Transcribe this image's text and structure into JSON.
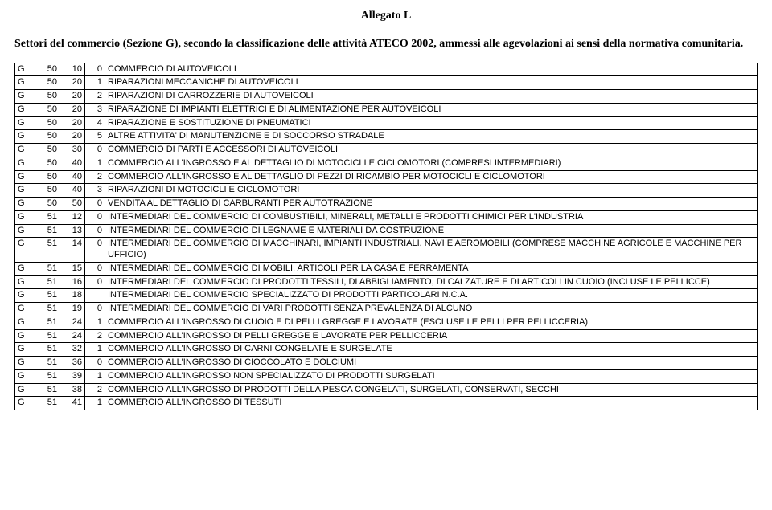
{
  "header": "Allegato L",
  "intro": "Settori del commercio (Sezione G), secondo la classificazione delle attività ATECO 2002, ammessi alle agevolazioni ai sensi della normativa comunitaria.",
  "rows": [
    {
      "c0": "G",
      "c1": "50",
      "c2": "10",
      "c3": "0",
      "c4": "COMMERCIO DI AUTOVEICOLI"
    },
    {
      "c0": "G",
      "c1": "50",
      "c2": "20",
      "c3": "1",
      "c4": "RIPARAZIONI MECCANICHE DI AUTOVEICOLI"
    },
    {
      "c0": "G",
      "c1": "50",
      "c2": "20",
      "c3": "2",
      "c4": "RIPARAZIONI DI CARROZZERIE DI AUTOVEICOLI"
    },
    {
      "c0": "G",
      "c1": "50",
      "c2": "20",
      "c3": "3",
      "c4": "RIPARAZIONE DI IMPIANTI ELETTRICI E DI ALIMENTAZIONE PER AUTOVEICOLI"
    },
    {
      "c0": "G",
      "c1": "50",
      "c2": "20",
      "c3": "4",
      "c4": "RIPARAZIONE E SOSTITUZIONE DI PNEUMATICI"
    },
    {
      "c0": "G",
      "c1": "50",
      "c2": "20",
      "c3": "5",
      "c4": "ALTRE ATTIVITA' DI MANUTENZIONE E DI SOCCORSO STRADALE"
    },
    {
      "c0": "G",
      "c1": "50",
      "c2": "30",
      "c3": "0",
      "c4": "COMMERCIO DI PARTI E ACCESSORI DI AUTOVEICOLI"
    },
    {
      "c0": "G",
      "c1": "50",
      "c2": "40",
      "c3": "1",
      "c4": "COMMERCIO ALL'INGROSSO E AL DETTAGLIO DI MOTOCICLI E CICLOMOTORI (COMPRESI INTERMEDIARI)"
    },
    {
      "c0": "G",
      "c1": "50",
      "c2": "40",
      "c3": "2",
      "c4": "COMMERCIO ALL'INGROSSO E AL DETTAGLIO DI PEZZI DI RICAMBIO PER MOTOCICLI E CICLOMOTORI"
    },
    {
      "c0": "G",
      "c1": "50",
      "c2": "40",
      "c3": "3",
      "c4": "RIPARAZIONI DI MOTOCICLI E CICLOMOTORI"
    },
    {
      "c0": "G",
      "c1": "50",
      "c2": "50",
      "c3": "0",
      "c4": "VENDITA AL DETTAGLIO DI CARBURANTI PER AUTOTRAZIONE"
    },
    {
      "c0": "G",
      "c1": "51",
      "c2": "12",
      "c3": "0",
      "c4": "INTERMEDIARI DEL COMMERCIO DI COMBUSTIBILI, MINERALI, METALLI E PRODOTTI CHIMICI PER L'INDUSTRIA"
    },
    {
      "c0": "G",
      "c1": "51",
      "c2": "13",
      "c3": "0",
      "c4": "INTERMEDIARI DEL COMMERCIO DI LEGNAME E MATERIALI DA COSTRUZIONE"
    },
    {
      "c0": "G",
      "c1": "51",
      "c2": "14",
      "c3": "0",
      "c4": "INTERMEDIARI DEL COMMERCIO DI MACCHINARI, IMPIANTI INDUSTRIALI, NAVI E AEROMOBILI (COMPRESE MACCHINE AGRICOLE E MACCHINE PER UFFICIO)"
    },
    {
      "c0": "G",
      "c1": "51",
      "c2": "15",
      "c3": "0",
      "c4": "INTERMEDIARI DEL COMMERCIO DI MOBILI, ARTICOLI PER LA CASA E FERRAMENTA"
    },
    {
      "c0": "G",
      "c1": "51",
      "c2": "16",
      "c3": "0",
      "c4": "INTERMEDIARI DEL COMMERCIO DI PRODOTTI TESSILI, DI ABBIGLIAMENTO, DI CALZATURE E DI ARTICOLI IN CUOIO (INCLUSE LE PELLICCE)"
    },
    {
      "c0": "G",
      "c1": "51",
      "c2": "18",
      "c3": "",
      "c4": "INTERMEDIARI DEL COMMERCIO SPECIALIZZATO DI PRODOTTI PARTICOLARI N.C.A."
    },
    {
      "c0": "G",
      "c1": "51",
      "c2": "19",
      "c3": "0",
      "c4": "INTERMEDIARI DEL COMMERCIO DI VARI PRODOTTI SENZA PREVALENZA DI ALCUNO"
    },
    {
      "c0": "G",
      "c1": "51",
      "c2": "24",
      "c3": "1",
      "c4": "COMMERCIO ALL'INGROSSO DI CUOIO E DI PELLI GREGGE E LAVORATE (ESCLUSE LE PELLI PER PELLICCERIA)"
    },
    {
      "c0": "G",
      "c1": "51",
      "c2": "24",
      "c3": "2",
      "c4": "COMMERCIO ALL'INGROSSO DI PELLI GREGGE E LAVORATE PER PELLICCERIA"
    },
    {
      "c0": "G",
      "c1": "51",
      "c2": "32",
      "c3": "1",
      "c4": "COMMERCIO ALL'INGROSSO DI CARNI CONGELATE E SURGELATE"
    },
    {
      "c0": "G",
      "c1": "51",
      "c2": "36",
      "c3": "0",
      "c4": "COMMERCIO ALL'INGROSSO DI CIOCCOLATO E DOLCIUMI"
    },
    {
      "c0": "G",
      "c1": "51",
      "c2": "39",
      "c3": "1",
      "c4": "COMMERCIO ALL'INGROSSO NON SPECIALIZZATO DI PRODOTTI SURGELATI"
    },
    {
      "c0": "G",
      "c1": "51",
      "c2": "38",
      "c3": "2",
      "c4": "COMMERCIO ALL'INGROSSO DI PRODOTTI DELLA PESCA CONGELATI, SURGELATI, CONSERVATI, SECCHI"
    },
    {
      "c0": "G",
      "c1": "51",
      "c2": "41",
      "c3": "1",
      "c4": "COMMERCIO ALL'INGROSSO DI TESSUTI"
    }
  ]
}
